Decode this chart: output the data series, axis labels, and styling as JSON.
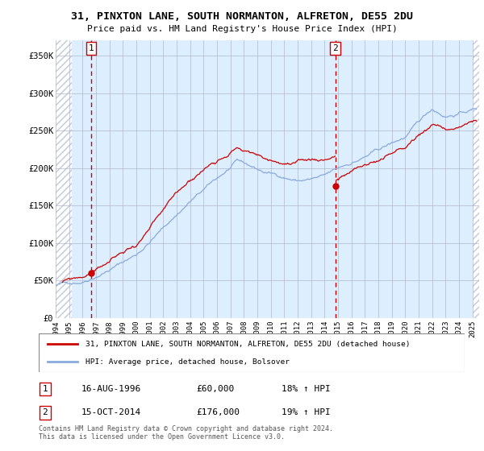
{
  "title": "31, PINXTON LANE, SOUTH NORMANTON, ALFRETON, DE55 2DU",
  "subtitle": "Price paid vs. HM Land Registry's House Price Index (HPI)",
  "xlim_start": 1994.0,
  "xlim_end": 2025.5,
  "ylim": [
    0,
    370000
  ],
  "yticks": [
    0,
    50000,
    100000,
    150000,
    200000,
    250000,
    300000,
    350000
  ],
  "ytick_labels": [
    "£0",
    "£50K",
    "£100K",
    "£150K",
    "£200K",
    "£250K",
    "£300K",
    "£350K"
  ],
  "xticks": [
    1994,
    1995,
    1996,
    1997,
    1998,
    1999,
    2000,
    2001,
    2002,
    2003,
    2004,
    2005,
    2006,
    2007,
    2008,
    2009,
    2010,
    2011,
    2012,
    2013,
    2014,
    2015,
    2016,
    2017,
    2018,
    2019,
    2020,
    2021,
    2022,
    2023,
    2024,
    2025
  ],
  "purchase_date_1": 1996.625,
  "purchase_price_1": 60000,
  "purchase_date_2": 2014.79,
  "purchase_price_2": 176000,
  "label_1": "1",
  "label_2": "2",
  "legend_line1": "31, PINXTON LANE, SOUTH NORMANTON, ALFRETON, DE55 2DU (detached house)",
  "legend_line2": "HPI: Average price, detached house, Bolsover",
  "table_row1": [
    "1",
    "16-AUG-1996",
    "£60,000",
    "18% ↑ HPI"
  ],
  "table_row2": [
    "2",
    "15-OCT-2014",
    "£176,000",
    "19% ↑ HPI"
  ],
  "footnote": "Contains HM Land Registry data © Crown copyright and database right 2024.\nThis data is licensed under the Open Government Licence v3.0.",
  "hpi_color": "#88aadd",
  "price_color": "#cc0000",
  "bg_color": "#ddeeff",
  "grid_color": "#b0b8d0",
  "dashed_line_color": "#cc0000",
  "hatch_color": "#c0c8d8"
}
